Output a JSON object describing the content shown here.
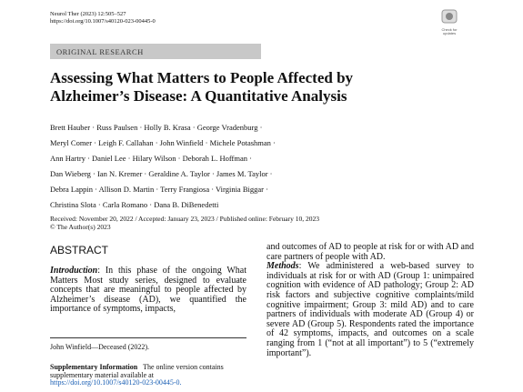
{
  "header": {
    "journal_ref": "Neurol Ther (2023) 12:505–527",
    "doi": "https://doi.org/10.1007/s40120-023-00445-0",
    "check_label": "Check for updates"
  },
  "section_label": "ORIGINAL RESEARCH",
  "title": "Assessing What Matters to People Affected by Alzheimer’s Disease: A Quantitative Analysis",
  "authors": [
    "Brett Hauber · Russ Paulsen · Holly B. Krasa · George Vradenburg ·",
    "Meryl Comer · Leigh F. Callahan · John Winfield · Michele Potashman ·",
    "Ann Hartry · Daniel Lee · Hilary Wilson · Deborah L. Hoffman ·",
    "Dan Wieberg · Ian N. Kremer · Geraldine A. Taylor · James M. Taylor ·",
    "Debra Lappin · Allison D. Martin · Terry Frangiosa · Virginia Biggar ·",
    "Christina Slota · Carla Romano · Dana B. DiBenedetti"
  ],
  "dates": "Received: November 20, 2022 / Accepted: January 23, 2023 / Published online: February 10, 2023",
  "copyright": "© The Author(s) 2023",
  "abstract": {
    "heading": "ABSTRACT",
    "introduction_label": "Introduction",
    "introduction_text": ": In this phase of the ongoing What Matters Most study series, designed to evaluate concepts that are meaningful to people affected by Alzheimer’s disease (AD), we quantified the importance of symptoms, impacts,",
    "introduction_continued": "and outcomes of AD to people at risk for or with AD and care partners of people with AD.",
    "methods_label": "Methods",
    "methods_text": ": We administered a web-based survey to individuals at risk for or with AD (Group 1: unimpaired cognition with evidence of AD pathology; Group 2: AD risk factors and subjective cognitive complaints/mild cognitive impairment; Group 3: mild AD) and to care partners of individuals with moderate AD (Group 4) or severe AD (Group 5). Respondents rated the importance of 42 symptoms, impacts, and outcomes on a scale ranging from 1 (“not at all important”) to 5 (“extremely important”)."
  },
  "footnote": "John Winfield—Deceased (2022).",
  "supplementary": {
    "label": "Supplementary Information",
    "text": "The online version contains supplementary material available at ",
    "link": "https://doi.org/10.1007/s40120-023-00445-0."
  }
}
